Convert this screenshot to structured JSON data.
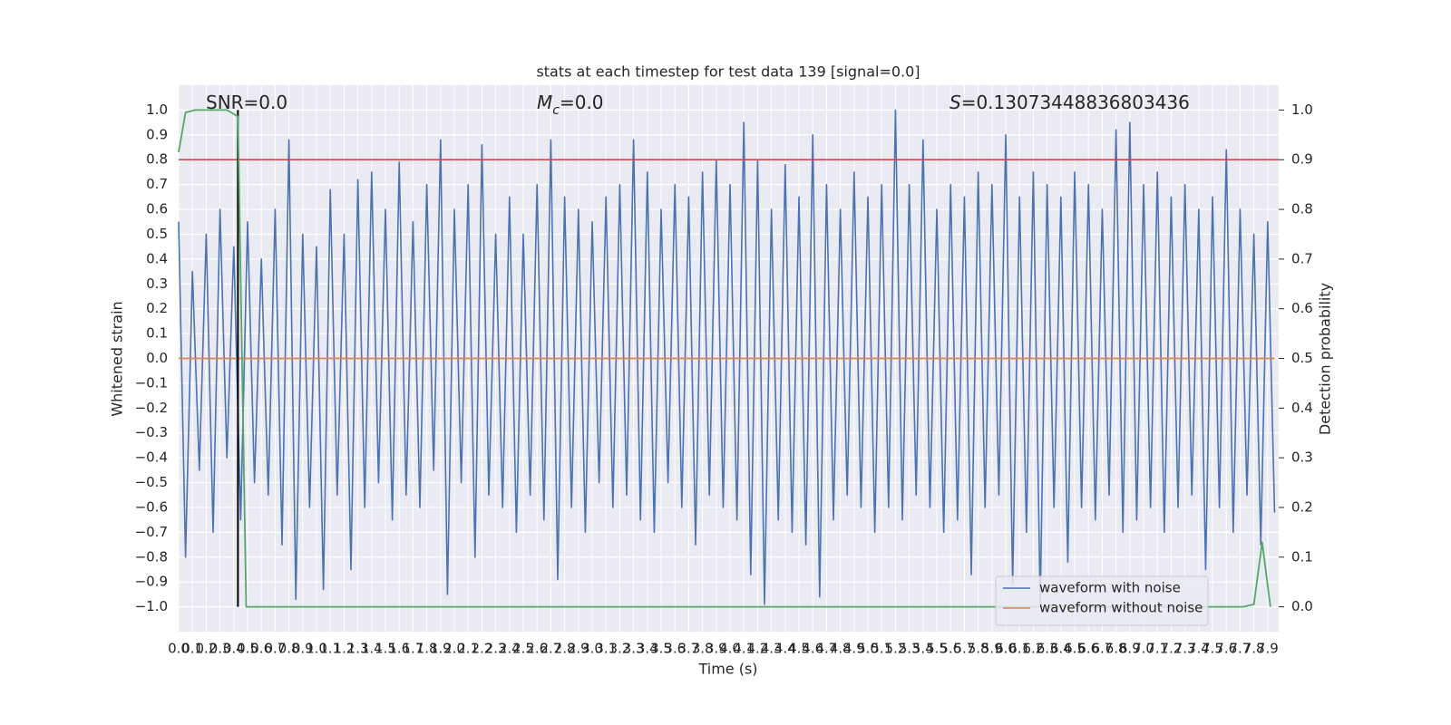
{
  "chart_data": {
    "type": "line",
    "title": "stats at each timestep for test data 139 [signal=0.0]",
    "xlabel": "Time (s)",
    "ylabel": "Whitened strain",
    "y2label": "Detection probability",
    "xlim": [
      0,
      7.98
    ],
    "ylim": [
      -1.1,
      1.1
    ],
    "y2lim": [
      -0.05,
      1.05
    ],
    "grid": true,
    "background": "#eaeaf2",
    "legend": "lower right",
    "xticks": [
      {
        "value": 0,
        "label": "0.0"
      },
      0.1,
      0.2,
      0.3,
      0.4,
      0.5,
      0.6,
      0.7,
      0.8,
      0.9,
      {
        "value": 1,
        "label": "1.0"
      },
      1.1,
      1.2,
      1.3,
      1.4,
      1.5,
      1.6,
      1.7,
      1.8,
      1.9,
      {
        "value": 2,
        "label": "2.0"
      },
      2.1,
      2.2,
      2.3,
      2.4,
      2.5,
      2.6,
      2.7,
      2.8,
      2.9,
      {
        "value": 3,
        "label": "3.0"
      },
      3.1,
      3.2,
      3.3,
      3.4,
      3.5,
      3.6,
      3.7,
      3.8,
      3.9,
      {
        "value": 4,
        "label": "4.0"
      },
      4.1,
      4.2,
      4.3,
      4.4,
      4.5,
      4.6,
      4.7,
      4.8,
      4.9,
      {
        "value": 5,
        "label": "5.0"
      },
      5.1,
      5.2,
      5.3,
      5.4,
      5.5,
      5.6,
      5.7,
      5.8,
      5.9,
      {
        "value": 6,
        "label": "6.0"
      },
      6.1,
      6.2,
      6.3,
      6.4,
      6.5,
      6.6,
      6.7,
      6.8,
      6.9,
      {
        "value": 7,
        "label": "7.0"
      },
      7.1,
      7.2,
      7.3,
      7.4,
      7.5,
      7.6,
      7.7,
      7.8,
      7.9
    ],
    "yticks": [
      {
        "value": -1,
        "label": "−1.0"
      },
      {
        "value": -0.9,
        "label": "−0.9"
      },
      {
        "value": -0.8,
        "label": "−0.8"
      },
      {
        "value": -0.7,
        "label": "−0.7"
      },
      {
        "value": -0.6,
        "label": "−0.6"
      },
      {
        "value": -0.5,
        "label": "−0.5"
      },
      {
        "value": -0.4,
        "label": "−0.4"
      },
      {
        "value": -0.3,
        "label": "−0.3"
      },
      {
        "value": -0.2,
        "label": "−0.2"
      },
      {
        "value": -0.1,
        "label": "−0.1"
      },
      {
        "value": 0,
        "label": "0.0"
      },
      0.1,
      0.2,
      0.3,
      0.4,
      0.5,
      0.6,
      0.7,
      0.8,
      0.9,
      {
        "value": 1,
        "label": "1.0"
      }
    ],
    "y2ticks": [
      {
        "value": 0,
        "label": "0.0"
      },
      0.1,
      0.2,
      0.3,
      0.4,
      0.5,
      0.6,
      0.7,
      0.8,
      0.9,
      {
        "value": 1,
        "label": "1.0"
      }
    ],
    "annotations": [
      {
        "text": "SNR=0.0"
      },
      {
        "symbol": "M",
        "subscript": "c",
        "text": "=0.0"
      },
      {
        "symbol": "S",
        "text": "=0.13073448836803436"
      }
    ],
    "threshold": {
      "value": 0.9,
      "axis": "y2",
      "color": "#c44e52"
    },
    "vline": {
      "x": 0.43,
      "y": [
        -1,
        1
      ],
      "color": "#000000"
    },
    "series": [
      {
        "name": "waveform with noise",
        "color": "#4c72b0",
        "x": [
          0,
          0.05,
          0.1,
          0.15,
          0.2,
          0.25,
          0.3,
          0.35,
          0.4,
          0.45,
          0.5,
          0.55,
          0.6,
          0.65,
          0.7,
          0.75,
          0.8,
          0.85,
          0.9,
          0.95,
          1,
          1.05,
          1.1,
          1.15,
          1.2,
          1.25,
          1.3,
          1.35,
          1.4,
          1.45,
          1.5,
          1.55,
          1.6,
          1.65,
          1.7,
          1.75,
          1.8,
          1.85,
          1.9,
          1.95,
          2,
          2.05,
          2.1,
          2.15,
          2.2,
          2.25,
          2.3,
          2.35,
          2.4,
          2.45,
          2.5,
          2.55,
          2.6,
          2.65,
          2.7,
          2.75,
          2.8,
          2.85,
          2.9,
          2.95,
          3,
          3.05,
          3.1,
          3.15,
          3.2,
          3.25,
          3.3,
          3.35,
          3.4,
          3.45,
          3.5,
          3.55,
          3.6,
          3.65,
          3.7,
          3.75,
          3.8,
          3.85,
          3.9,
          3.95,
          4,
          4.05,
          4.1,
          4.15,
          4.2,
          4.25,
          4.3,
          4.35,
          4.4,
          4.45,
          4.5,
          4.55,
          4.6,
          4.65,
          4.7,
          4.75,
          4.8,
          4.85,
          4.9,
          4.95,
          5,
          5.05,
          5.1,
          5.15,
          5.2,
          5.25,
          5.3,
          5.35,
          5.4,
          5.45,
          5.5,
          5.55,
          5.6,
          5.65,
          5.7,
          5.75,
          5.8,
          5.85,
          5.9,
          5.95,
          6,
          6.05,
          6.1,
          6.15,
          6.2,
          6.25,
          6.3,
          6.35,
          6.4,
          6.45,
          6.5,
          6.55,
          6.6,
          6.65,
          6.7,
          6.75,
          6.8,
          6.85,
          6.9,
          6.95,
          7,
          7.05,
          7.1,
          7.15,
          7.2,
          7.25,
          7.3,
          7.35,
          7.4,
          7.45,
          7.5,
          7.55,
          7.6,
          7.65,
          7.7,
          7.75,
          7.8,
          7.85,
          7.9,
          7.95
        ],
        "values": [
          0.55,
          -0.8,
          0.35,
          -0.45,
          0.5,
          -0.7,
          0.6,
          -0.4,
          0.45,
          -0.65,
          0.55,
          -0.5,
          0.4,
          -0.55,
          0.6,
          -0.75,
          0.88,
          -0.97,
          0.5,
          -0.6,
          0.45,
          -0.93,
          0.68,
          -0.55,
          0.5,
          -0.85,
          0.72,
          -0.6,
          0.75,
          -0.5,
          0.6,
          -0.65,
          0.79,
          -0.55,
          0.55,
          -0.6,
          0.7,
          -0.45,
          0.88,
          -0.95,
          0.6,
          -0.5,
          0.7,
          -0.8,
          0.86,
          -0.55,
          0.5,
          -0.6,
          0.65,
          -0.7,
          0.5,
          -0.55,
          0.7,
          -0.65,
          0.88,
          -0.89,
          0.65,
          -0.6,
          0.6,
          -0.7,
          0.55,
          -0.5,
          0.65,
          -0.6,
          0.7,
          -0.55,
          0.88,
          -0.65,
          0.75,
          -0.7,
          0.6,
          -0.5,
          0.7,
          -0.6,
          0.65,
          -0.75,
          0.75,
          -0.55,
          0.8,
          -0.6,
          0.7,
          -0.65,
          0.95,
          -0.87,
          0.8,
          -0.99,
          0.6,
          -0.65,
          0.78,
          -0.7,
          0.65,
          -0.75,
          0.9,
          -0.96,
          0.7,
          -0.65,
          0.6,
          -0.55,
          0.75,
          -0.6,
          0.65,
          -0.7,
          0.7,
          -0.6,
          1.0,
          -0.65,
          0.7,
          -0.55,
          0.88,
          -0.6,
          0.6,
          -0.7,
          0.7,
          -0.65,
          0.65,
          -0.87,
          0.75,
          -0.6,
          0.7,
          -0.55,
          0.9,
          -0.91,
          0.65,
          -0.7,
          0.75,
          -0.99,
          0.7,
          -0.6,
          0.65,
          -0.82,
          0.75,
          -0.6,
          0.7,
          -0.65,
          0.6,
          -0.55,
          0.92,
          -0.7,
          0.95,
          -0.65,
          0.7,
          -0.6,
          0.75,
          -0.7,
          0.65,
          -0.6,
          0.7,
          -0.55,
          0.6,
          -0.85,
          0.65,
          -0.6,
          0.84,
          -0.7,
          0.6,
          -0.55,
          0.5,
          -0.75,
          0.55,
          -0.62
        ]
      },
      {
        "name": "waveform without noise",
        "color": "#dd8452",
        "x": [
          0,
          7.95
        ],
        "values": [
          0,
          0
        ]
      },
      {
        "color": "#55a868",
        "axis": "y2",
        "x": [
          0,
          0.05,
          0.12,
          0.35,
          0.43,
          0.49,
          7.72,
          7.8,
          7.86,
          7.92
        ],
        "values": [
          0.915,
          0.995,
          1.0,
          1.0,
          0.987,
          0.0,
          0.0,
          0.005,
          0.13,
          0.0
        ]
      }
    ]
  }
}
